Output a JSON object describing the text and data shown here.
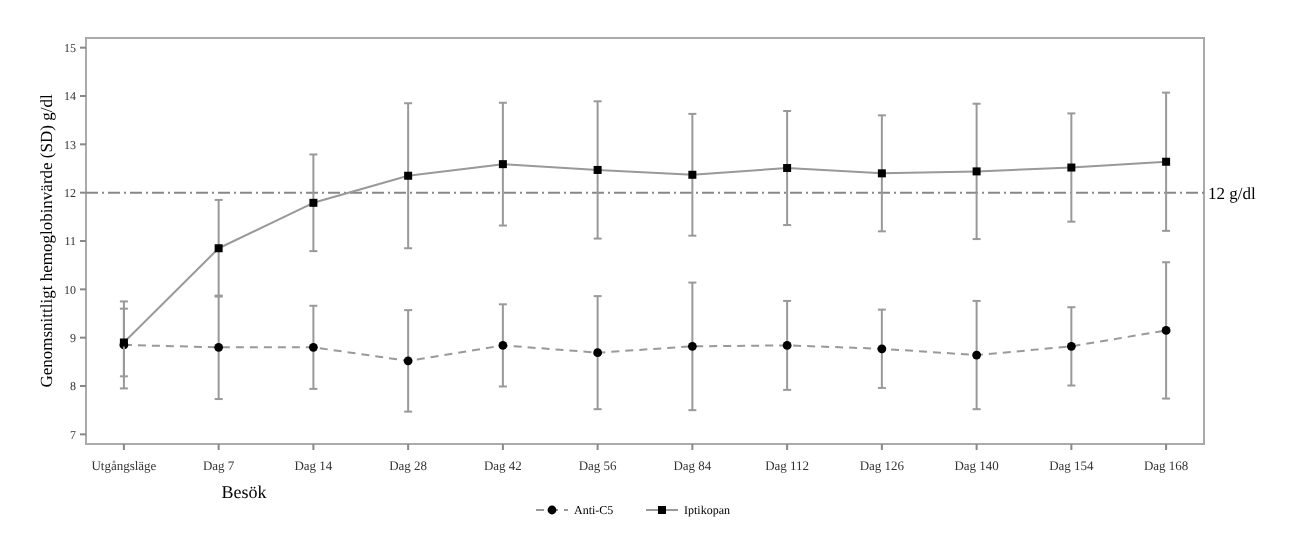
{
  "chart_data": {
    "type": "line",
    "xlabel": "Besök",
    "ylabel": "Genomsnittligt hemoglobinvärde (SD) g/dl",
    "categories": [
      "Utgångsläge",
      "Dag 7",
      "Dag 14",
      "Dag 28",
      "Dag 42",
      "Dag 56",
      "Dag 84",
      "Dag 112",
      "Dag 126",
      "Dag 140",
      "Dag 154",
      "Dag 168"
    ],
    "ylim": [
      6.8,
      15.2
    ],
    "yticks": [
      7,
      8,
      9,
      10,
      11,
      12,
      13,
      14,
      15
    ],
    "series": [
      {
        "name": "Anti-C5",
        "color": "#000000",
        "marker": "circle",
        "line_style": "dashed",
        "values": [
          8.85,
          8.8,
          8.8,
          8.52,
          8.84,
          8.69,
          8.82,
          8.84,
          8.77,
          8.64,
          8.82,
          9.15
        ],
        "errors": [
          0.9,
          1.07,
          0.86,
          1.05,
          0.85,
          1.17,
          1.32,
          0.92,
          0.81,
          1.12,
          0.81,
          1.41
        ]
      },
      {
        "name": "Iptikopan",
        "color": "#000000",
        "marker": "square",
        "line_style": "solid",
        "values": [
          8.9,
          10.85,
          11.79,
          12.35,
          12.59,
          12.47,
          12.37,
          12.51,
          12.4,
          12.44,
          12.52,
          12.64
        ],
        "errors": [
          0.7,
          1.0,
          1.0,
          1.5,
          1.27,
          1.42,
          1.26,
          1.18,
          1.2,
          1.4,
          1.12,
          1.43
        ]
      }
    ],
    "ref_lines": [
      {
        "axis": "y",
        "value": 12,
        "label": "12 g/dl",
        "line_style": "dashdot",
        "color": "#888888"
      }
    ],
    "legend": "bottom",
    "grid": false
  }
}
